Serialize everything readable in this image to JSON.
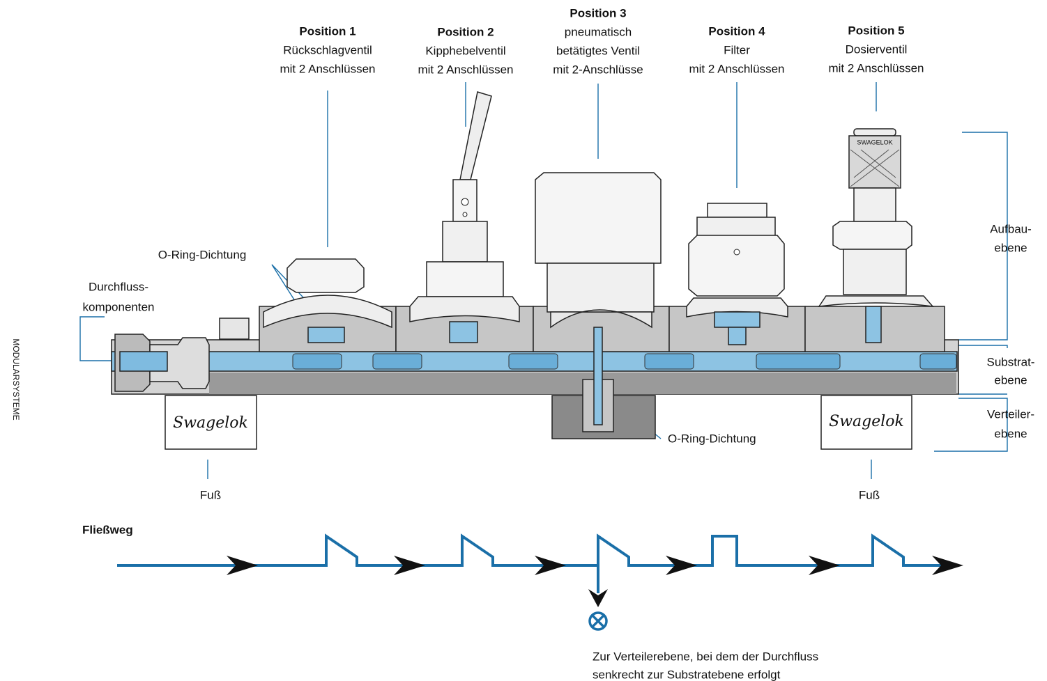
{
  "side_label": "MODULARSYSTEME",
  "positions": [
    {
      "title": "Position 1",
      "lines": [
        "Rückschlagventil",
        "mit 2 Anschlüssen"
      ]
    },
    {
      "title": "Position 2",
      "lines": [
        "Kipphebelventil",
        "mit 2 Anschlüssen"
      ]
    },
    {
      "title": "Position 3",
      "lines": [
        "pneumatisch",
        "betätigtes Ventil",
        "mit 2-Anschlüsse"
      ]
    },
    {
      "title": "Position 4",
      "lines": [
        "Filter",
        "mit 2 Anschlüssen"
      ]
    },
    {
      "title": "Position 5",
      "lines": [
        "Dosierventil",
        "mit 2 Anschlüssen"
      ]
    }
  ],
  "labels": {
    "o_ring_top": "O-Ring-Dichtung",
    "flow_components": [
      "Durchfluss-",
      "komponenten"
    ],
    "o_ring_bottom": "O-Ring-Dichtung",
    "foot_left": "Fuß",
    "foot_right": "Fuß"
  },
  "levels": [
    [
      "Aufbau-",
      "ebene"
    ],
    [
      "Substrat-",
      "ebene"
    ],
    [
      "Verteiler-",
      "ebene"
    ]
  ],
  "brand": [
    "Swagelok",
    "Swagelok"
  ],
  "knob_brand": "SWAGELOK",
  "flow": {
    "title": "Fließweg",
    "note": [
      "Zur Verteilerebene, bei dem der Durchfluss",
      "senkrecht zur Substratebene erfolgt"
    ]
  }
}
